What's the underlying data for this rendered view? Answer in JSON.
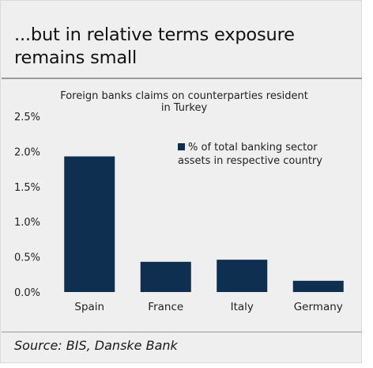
{
  "header": {
    "title": "...but in relative terms exposure remains small"
  },
  "footer": {
    "source": "Source: BIS, Danske Bank"
  },
  "colors": {
    "bar": "#0e2f50",
    "panel_background": "#efefef",
    "rule": "#9a9a9a"
  },
  "chart_data": {
    "type": "bar",
    "title_lines": [
      "Foreign banks claims on counterparties resident",
      "in Turkey"
    ],
    "categories": [
      "Spain",
      "France",
      "Italy",
      "Germany"
    ],
    "series": [
      {
        "name_lines": [
          "% of total banking sector",
          "assets in respective country"
        ],
        "values": [
          1.93,
          0.43,
          0.46,
          0.16
        ]
      }
    ],
    "y_ticks": [
      "0.0%",
      "0.5%",
      "1.0%",
      "1.5%",
      "2.0%",
      "2.5%"
    ],
    "ylim": [
      0,
      2.5
    ],
    "grid": false,
    "legend_position": "top-right"
  }
}
